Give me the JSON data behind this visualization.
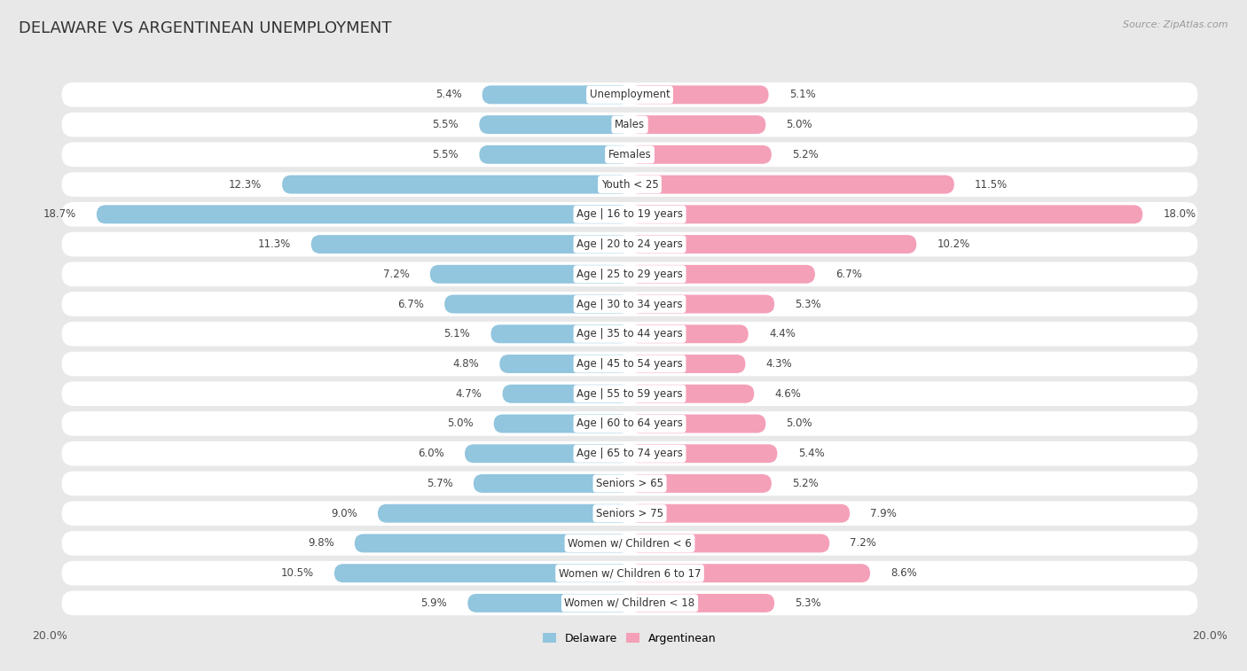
{
  "title": "DELAWARE VS ARGENTINEAN UNEMPLOYMENT",
  "source": "Source: ZipAtlas.com",
  "categories": [
    "Unemployment",
    "Males",
    "Females",
    "Youth < 25",
    "Age | 16 to 19 years",
    "Age | 20 to 24 years",
    "Age | 25 to 29 years",
    "Age | 30 to 34 years",
    "Age | 35 to 44 years",
    "Age | 45 to 54 years",
    "Age | 55 to 59 years",
    "Age | 60 to 64 years",
    "Age | 65 to 74 years",
    "Seniors > 65",
    "Seniors > 75",
    "Women w/ Children < 6",
    "Women w/ Children 6 to 17",
    "Women w/ Children < 18"
  ],
  "delaware": [
    5.4,
    5.5,
    5.5,
    12.3,
    18.7,
    11.3,
    7.2,
    6.7,
    5.1,
    4.8,
    4.7,
    5.0,
    6.0,
    5.7,
    9.0,
    9.8,
    10.5,
    5.9
  ],
  "argentinean": [
    5.1,
    5.0,
    5.2,
    11.5,
    18.0,
    10.2,
    6.7,
    5.3,
    4.4,
    4.3,
    4.6,
    5.0,
    5.4,
    5.2,
    7.9,
    7.2,
    8.6,
    5.3
  ],
  "delaware_color": "#92c5de",
  "argentinean_color": "#f4a0b8",
  "row_bg_color": "#ffffff",
  "outer_bg_color": "#e8e8e8",
  "axis_limit": 20.0,
  "legend_delaware": "Delaware",
  "legend_argentinean": "Argentinean",
  "title_fontsize": 13,
  "label_fontsize": 8.5,
  "value_fontsize": 8.5
}
